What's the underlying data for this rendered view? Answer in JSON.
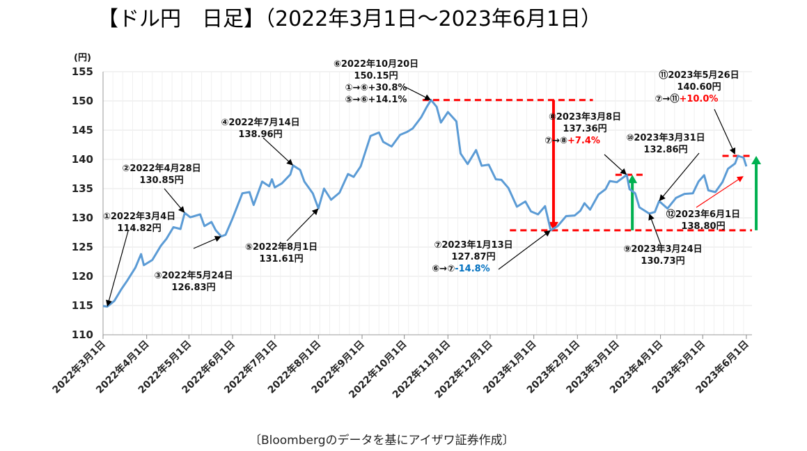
{
  "title": "【ドル円　日足】（2022年3月1日～2023年6月1日）",
  "source": "〔Bloombergのデータを基にアイザワ証券作成〕",
  "colors": {
    "line": "#5b9bd5",
    "dash": "#ff0000",
    "down": "#ff0000",
    "up": "#00b050",
    "neg_pct": "#0070c0",
    "pos_pct": "#ff0000"
  },
  "chart_data": {
    "type": "line",
    "ylabel": "(円)",
    "ylim": [
      110,
      155
    ],
    "yticks": [
      "110",
      "115",
      "120",
      "125",
      "130",
      "135",
      "140",
      "145",
      "150",
      "155"
    ],
    "xlim": [
      "2022-03-01",
      "2023-06-05"
    ],
    "xticks": [
      "2022年3月1日",
      "2022年4月1日",
      "2022年5月1日",
      "2022年6月1日",
      "2022年7月1日",
      "2022年8月1日",
      "2022年9月1日",
      "2022年10月1日",
      "2022年11月1日",
      "2022年12月1日",
      "2023年1月1日",
      "2023年2月1日",
      "2023年3月1日",
      "2023年4月1日",
      "2023年5月1日",
      "2023年6月1日"
    ],
    "xtick_dates": [
      "2022-03-01",
      "2022-04-01",
      "2022-05-01",
      "2022-06-01",
      "2022-07-01",
      "2022-08-01",
      "2022-09-01",
      "2022-10-01",
      "2022-11-01",
      "2022-12-01",
      "2023-01-01",
      "2023-02-01",
      "2023-03-01",
      "2023-04-01",
      "2023-05-01",
      "2023-06-01"
    ],
    "series": [
      {
        "points": [
          [
            "2022-03-01",
            114.9
          ],
          [
            "2022-03-04",
            114.82
          ],
          [
            "2022-03-09",
            115.8
          ],
          [
            "2022-03-14",
            117.8
          ],
          [
            "2022-03-18",
            119.2
          ],
          [
            "2022-03-24",
            121.5
          ],
          [
            "2022-03-28",
            123.8
          ],
          [
            "2022-03-30",
            121.9
          ],
          [
            "2022-04-05",
            122.8
          ],
          [
            "2022-04-11",
            125.2
          ],
          [
            "2022-04-15",
            126.4
          ],
          [
            "2022-04-20",
            128.4
          ],
          [
            "2022-04-25",
            128.1
          ],
          [
            "2022-04-28",
            130.85
          ],
          [
            "2022-05-02",
            130.1
          ],
          [
            "2022-05-09",
            130.6
          ],
          [
            "2022-05-12",
            128.6
          ],
          [
            "2022-05-17",
            129.3
          ],
          [
            "2022-05-20",
            127.9
          ],
          [
            "2022-05-24",
            126.83
          ],
          [
            "2022-05-27",
            127.1
          ],
          [
            "2022-06-01",
            129.9
          ],
          [
            "2022-06-08",
            134.2
          ],
          [
            "2022-06-13",
            134.4
          ],
          [
            "2022-06-16",
            132.2
          ],
          [
            "2022-06-22",
            136.2
          ],
          [
            "2022-06-27",
            135.4
          ],
          [
            "2022-06-29",
            136.6
          ],
          [
            "2022-07-01",
            135.2
          ],
          [
            "2022-07-06",
            135.9
          ],
          [
            "2022-07-12",
            137.4
          ],
          [
            "2022-07-14",
            138.96
          ],
          [
            "2022-07-19",
            138.2
          ],
          [
            "2022-07-22",
            136.2
          ],
          [
            "2022-07-28",
            134.2
          ],
          [
            "2022-08-01",
            131.61
          ],
          [
            "2022-08-05",
            135.0
          ],
          [
            "2022-08-10",
            133.1
          ],
          [
            "2022-08-16",
            134.3
          ],
          [
            "2022-08-22",
            137.5
          ],
          [
            "2022-08-26",
            137.0
          ],
          [
            "2022-08-31",
            138.8
          ],
          [
            "2022-09-07",
            144.0
          ],
          [
            "2022-09-13",
            144.6
          ],
          [
            "2022-09-16",
            143.0
          ],
          [
            "2022-09-22",
            142.2
          ],
          [
            "2022-09-28",
            144.2
          ],
          [
            "2022-10-03",
            144.7
          ],
          [
            "2022-10-07",
            145.3
          ],
          [
            "2022-10-13",
            147.2
          ],
          [
            "2022-10-17",
            149.0
          ],
          [
            "2022-10-20",
            150.15
          ],
          [
            "2022-10-24",
            149.0
          ],
          [
            "2022-10-27",
            146.3
          ],
          [
            "2022-11-01",
            148.1
          ],
          [
            "2022-11-07",
            146.5
          ],
          [
            "2022-11-10",
            141.0
          ],
          [
            "2022-11-15",
            139.2
          ],
          [
            "2022-11-21",
            141.6
          ],
          [
            "2022-11-25",
            138.9
          ],
          [
            "2022-11-30",
            139.1
          ],
          [
            "2022-12-05",
            136.6
          ],
          [
            "2022-12-09",
            136.5
          ],
          [
            "2022-12-14",
            135.1
          ],
          [
            "2022-12-20",
            131.9
          ],
          [
            "2022-12-26",
            132.8
          ],
          [
            "2022-12-30",
            131.1
          ],
          [
            "2023-01-04",
            130.6
          ],
          [
            "2023-01-09",
            132.0
          ],
          [
            "2023-01-13",
            127.87
          ],
          [
            "2023-01-18",
            128.6
          ],
          [
            "2023-01-24",
            130.3
          ],
          [
            "2023-01-30",
            130.4
          ],
          [
            "2023-02-03",
            131.2
          ],
          [
            "2023-02-06",
            132.5
          ],
          [
            "2023-02-10",
            131.4
          ],
          [
            "2023-02-16",
            134.0
          ],
          [
            "2023-02-21",
            134.9
          ],
          [
            "2023-02-24",
            136.3
          ],
          [
            "2023-03-01",
            136.1
          ],
          [
            "2023-03-08",
            137.36
          ],
          [
            "2023-03-10",
            134.9
          ],
          [
            "2023-03-14",
            134.2
          ],
          [
            "2023-03-17",
            131.8
          ],
          [
            "2023-03-24",
            130.73
          ],
          [
            "2023-03-28",
            131.0
          ],
          [
            "2023-03-31",
            132.86
          ],
          [
            "2023-04-06",
            131.6
          ],
          [
            "2023-04-12",
            133.4
          ],
          [
            "2023-04-18",
            134.1
          ],
          [
            "2023-04-24",
            134.2
          ],
          [
            "2023-04-28",
            136.2
          ],
          [
            "2023-05-02",
            137.3
          ],
          [
            "2023-05-05",
            134.7
          ],
          [
            "2023-05-10",
            134.4
          ],
          [
            "2023-05-15",
            136.1
          ],
          [
            "2023-05-19",
            138.4
          ],
          [
            "2023-05-24",
            139.3
          ],
          [
            "2023-05-26",
            140.6
          ],
          [
            "2023-05-30",
            140.3
          ],
          [
            "2023-06-01",
            138.8
          ]
        ]
      }
    ],
    "annotations": [
      {
        "id": "①",
        "lines": [
          "①2022年3月4日",
          "114.82円"
        ]
      },
      {
        "id": "②",
        "lines": [
          "②2022年4月28日",
          "130.85円"
        ]
      },
      {
        "id": "③",
        "lines": [
          "③2022年5月24日",
          "126.83円"
        ]
      },
      {
        "id": "④",
        "lines": [
          "④2022年7月14日",
          "138.96円"
        ]
      },
      {
        "id": "⑤",
        "lines": [
          "⑤2022年8月1日",
          "131.61円"
        ]
      },
      {
        "id": "⑥",
        "lines": [
          "⑥2022年10月20日",
          "150.15円",
          "①→⑥+30.8%",
          "⑤→⑥+14.1%"
        ]
      },
      {
        "id": "⑦",
        "lines": [
          "⑦2023年1月13日",
          "127.87円"
        ],
        "pct_prefix": "⑥→⑦",
        "pct": "-14.8%"
      },
      {
        "id": "⑧",
        "lines": [
          "⑧2023年3月8日",
          "137.36円"
        ],
        "pct_prefix": "⑦→⑧",
        "pct": "+7.4%"
      },
      {
        "id": "⑨",
        "lines": [
          "⑨2023年3月24日",
          "130.73円"
        ]
      },
      {
        "id": "⑩",
        "lines": [
          "⑩2023年3月31日",
          "132.86円"
        ]
      },
      {
        "id": "⑪",
        "lines": [
          "⑪2023年5月26日",
          "140.60円"
        ],
        "pct_prefix": "⑦→⑪",
        "pct": "+10.0%"
      },
      {
        "id": "⑫",
        "lines": [
          "⑫2023年6月1日",
          "138.80円"
        ]
      }
    ]
  }
}
